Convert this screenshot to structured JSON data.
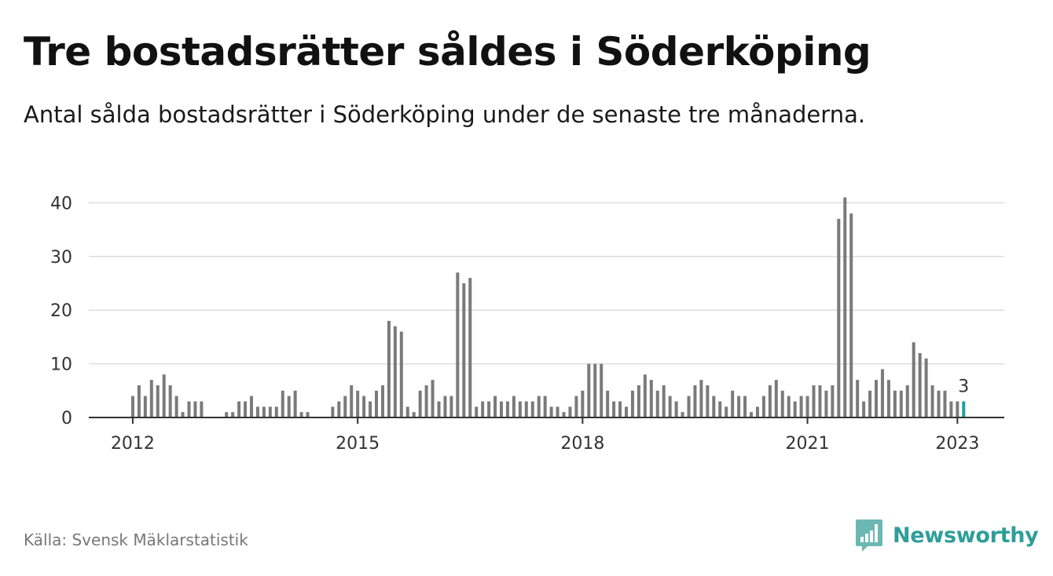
{
  "title": "Tre bostadsrätter såldes i Söderköping",
  "subtitle": "Antal sålda bostadsrätter i Söderköping under de senaste tre månaderna.",
  "source": "Källa: Svensk Mäklarstatistik",
  "brand": {
    "name": "Newsworthy",
    "icon": "newsworthy-logo-icon"
  },
  "colors": {
    "bar": "#7a7a7a",
    "highlight": "#1ba39c",
    "grid": "#dddddd",
    "axis": "#333333",
    "brand": "#2e9e98"
  },
  "chart_data": {
    "type": "bar",
    "title": "Tre bostadsrätter såldes i Söderköping",
    "subtitle": "Antal sålda bostadsrätter i Söderköping under de senaste tre månaderna.",
    "xlabel": "",
    "ylabel": "",
    "x_unit": "month",
    "x_start": "2011-12",
    "x_tick_labels": [
      "2012",
      "2015",
      "2018",
      "2021",
      "2023"
    ],
    "y_ticks": [
      0,
      10,
      20,
      30,
      40
    ],
    "y_tick_labels": [
      "0",
      "10",
      "20",
      "30",
      "40"
    ],
    "ylim": [
      0,
      44
    ],
    "grid": true,
    "legend": "none",
    "values": [
      0,
      4,
      6,
      4,
      7,
      6,
      8,
      6,
      4,
      1,
      3,
      3,
      3,
      0,
      0,
      0,
      1,
      1,
      3,
      3,
      4,
      2,
      2,
      2,
      2,
      5,
      4,
      5,
      1,
      1,
      0,
      0,
      0,
      2,
      3,
      4,
      6,
      5,
      4,
      3,
      5,
      6,
      18,
      17,
      16,
      2,
      1,
      5,
      6,
      7,
      3,
      4,
      4,
      27,
      25,
      26,
      2,
      3,
      3,
      4,
      3,
      3,
      4,
      3,
      3,
      3,
      4,
      4,
      2,
      2,
      1,
      2,
      4,
      5,
      10,
      10,
      10,
      5,
      3,
      3,
      2,
      5,
      6,
      8,
      7,
      5,
      6,
      4,
      3,
      1,
      4,
      6,
      7,
      6,
      4,
      3,
      2,
      5,
      4,
      4,
      1,
      2,
      4,
      6,
      7,
      5,
      4,
      3,
      4,
      4,
      6,
      6,
      5,
      6,
      37,
      41,
      38,
      7,
      3,
      5,
      7,
      9,
      7,
      5,
      5,
      6,
      14,
      12,
      11,
      6,
      5,
      5,
      3,
      3,
      3
    ],
    "highlight_last": true,
    "annotation": "3"
  }
}
